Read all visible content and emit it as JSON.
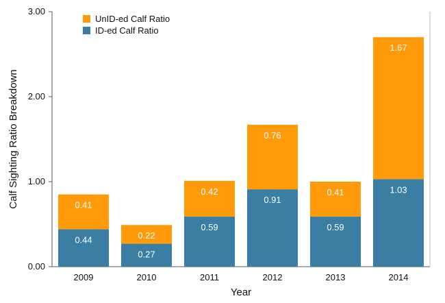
{
  "chart_data": {
    "type": "bar",
    "stacked": true,
    "categories": [
      "2009",
      "2010",
      "2011",
      "2012",
      "2013",
      "2014"
    ],
    "series": [
      {
        "name": "ID-ed Calf Ratio",
        "values": [
          0.44,
          0.27,
          0.59,
          0.91,
          0.59,
          1.03
        ],
        "color": "#3a7fa3"
      },
      {
        "name": "UnID-ed Calf Ratio",
        "values": [
          0.41,
          0.22,
          0.42,
          0.76,
          0.41,
          1.67
        ],
        "color": "#ff9a0a"
      }
    ],
    "data_labels": {
      "ID-ed Calf Ratio": [
        "0.44",
        "0.27",
        "0.59",
        "0.91",
        "0.59",
        "1.03"
      ],
      "UnID-ed Calf Ratio": [
        "0.41",
        "0.22",
        "0.42",
        "0.76",
        "0.41",
        "1.67"
      ]
    },
    "xlabel": "Year",
    "ylabel": "Calf Sighting Ratio Breakdown",
    "ylim": [
      0,
      3
    ],
    "yticks": [
      0,
      1,
      2,
      3
    ],
    "ytick_labels": [
      "0.00",
      "1.00",
      "2.00",
      "3.00"
    ],
    "grid": false,
    "legend": {
      "placement": "top-left",
      "entries": [
        "UnID-ed Calf Ratio",
        "ID-ed Calf Ratio"
      ]
    }
  }
}
